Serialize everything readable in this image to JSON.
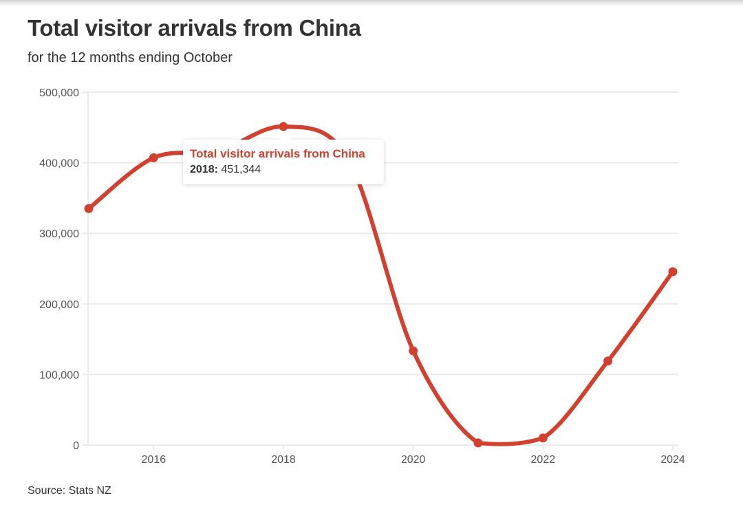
{
  "header": {
    "title": "Total visitor arrivals from China",
    "subtitle": "for the 12 months ending October"
  },
  "footer": {
    "source": "Source: Stats NZ"
  },
  "tooltip": {
    "series": "Total visitor arrivals from China",
    "year": "2018:",
    "value": "451,344"
  },
  "colors": {
    "line": "#d1412f",
    "grid": "#ebebeb",
    "text": "#333333",
    "axis_text": "#555555"
  },
  "axis": {
    "y_ticks": [
      "500,000",
      "400,000",
      "300,000",
      "200,000",
      "100,000",
      "0"
    ],
    "x_ticks": [
      "2016",
      "2018",
      "2020",
      "2022",
      "2024"
    ]
  },
  "chart_data": {
    "type": "line",
    "title": "Total visitor arrivals from China",
    "subtitle": "for the 12 months ending October",
    "xlabel": "",
    "ylabel": "",
    "x": [
      2015,
      2016,
      2017,
      2018,
      2019,
      2020,
      2021,
      2022,
      2023,
      2024
    ],
    "series": [
      {
        "name": "Total visitor arrivals from China",
        "values": [
          335000,
          407000,
          417000,
          451344,
          405000,
          133500,
          3000,
          10000,
          119000,
          245600
        ]
      }
    ],
    "ylim": [
      0,
      500000
    ],
    "xlim": [
      2015,
      2024
    ],
    "y_ticks": [
      0,
      100000,
      200000,
      300000,
      400000,
      500000
    ],
    "x_ticks": [
      2016,
      2018,
      2020,
      2022,
      2024
    ],
    "grid": true,
    "legend": "none",
    "annotations": [
      {
        "type": "tooltip",
        "x": 2018,
        "text": "Total visitor arrivals from China — 2018: 451,344"
      }
    ],
    "source": "Source: Stats NZ"
  }
}
